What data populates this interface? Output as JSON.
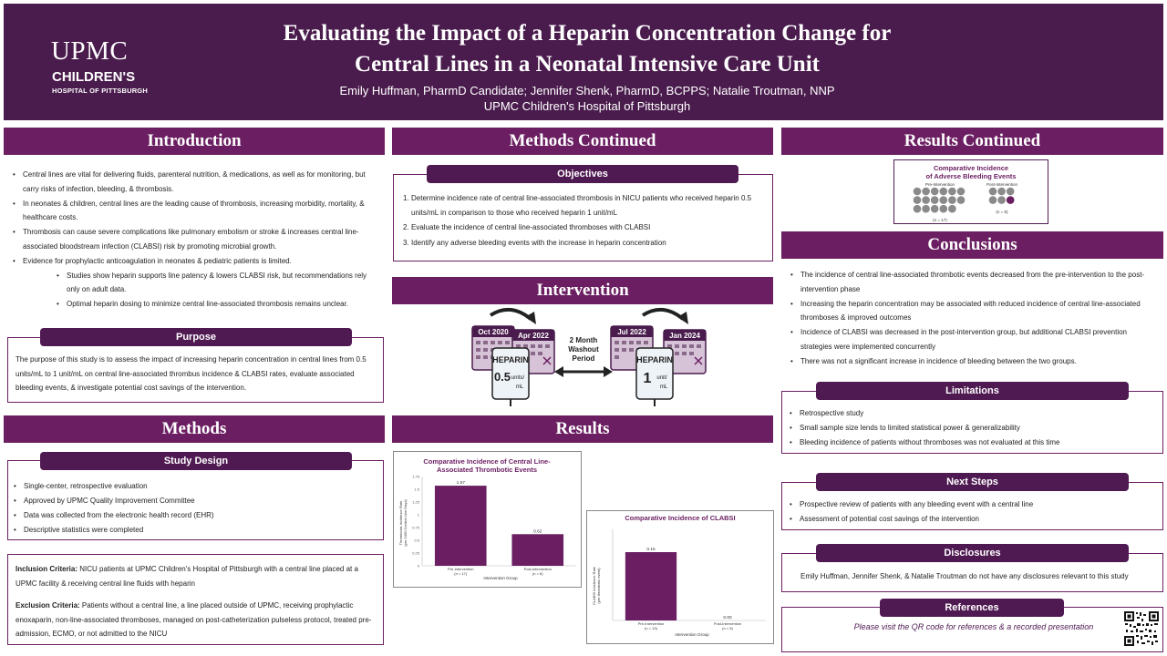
{
  "header": {
    "logo_upmc": "UPMC",
    "logo_childrens": "CHILDREN'S",
    "logo_hospital": "HOSPITAL OF PITTSBURGH",
    "title_line1": "Evaluating the Impact of a Heparin Concentration Change for",
    "title_line2": "Central Lines in a Neonatal Intensive Care Unit",
    "authors": "Emily Huffman, PharmD Candidate; Jennifer Shenk, PharmD, BCPPS; Natalie Troutman, NNP",
    "affiliation": "UPMC Children's Hospital of Pittsburgh"
  },
  "introduction": {
    "title": "Introduction",
    "bullets": [
      "Central lines are vital for delivering fluids, parenteral nutrition, & medications, as well as for monitoring, but carry risks of infection, bleeding, & thrombosis.",
      "In neonates & children, central lines are the leading cause of thrombosis, increasing morbidity, mortality, & healthcare costs.",
      "Thrombosis can cause severe complications like pulmonary embolism or stroke & increases central line-associated bloodstream infection (CLABSI) risk by promoting microbial growth.",
      "Evidence for prophylactic anticoagulation in neonates & pediatric patients is limited."
    ],
    "sub_bullets": [
      "Studies show heparin supports line patency & lowers CLABSI risk, but recommendations rely only on adult data.",
      "Optimal heparin dosing to minimize central line-associated thrombosis remains unclear."
    ]
  },
  "purpose": {
    "title": "Purpose",
    "text": "The purpose of this study is to assess the impact of increasing heparin concentration in central lines from 0.5 units/mL  to 1 unit/mL on central line-associated thrombus incidence & CLABSI rates, evaluate associated bleeding events, & investigate potential cost savings of the intervention."
  },
  "methods": {
    "title": "Methods",
    "study_design_title": "Study Design",
    "bullets": [
      "Single-center, retrospective evaluation",
      "Approved by UPMC Quality Improvement Committee",
      "Data was collected from the electronic health record (EHR)",
      "Descriptive statistics were completed"
    ],
    "inclusion_label": "Inclusion Criteria:",
    "inclusion_text": " NICU patients at UPMC Children's Hospital of Pittsburgh with a central line placed at a UPMC facility & receiving central line fluids with heparin",
    "exclusion_label": "Exclusion Criteria:",
    "exclusion_text": " Patients without a central line, a line placed outside of UPMC, receiving prophylactic enoxaparin, non-line-associated thromboses, managed on post-catheterization pulseless protocol, treated pre-admission, ECMO, or not admitted to the NICU"
  },
  "methods_continued": {
    "title": "Methods Continued",
    "objectives_title": "Objectives",
    "objectives": [
      "Determine incidence rate of central line-associated thrombosis in NICU patients who received heparin 0.5 units/mL in comparison to those who received heparin 1 unit/mL",
      "Evaluate the incidence of central line-associated thromboses with CLABSI",
      "Identify any adverse bleeding events with the increase in heparin concentration"
    ]
  },
  "intervention": {
    "title": "Intervention",
    "cal_pre_start": "Oct 2020",
    "cal_pre_end": "Apr 2022",
    "cal_post_start": "Jul 2022",
    "cal_post_end": "Jan 2024",
    "washout": "2 Month Washout Period",
    "bag_label": "HEPARIN",
    "bag_pre_dose": "0.5",
    "bag_post_dose": "1",
    "bag_unit_pre": "units/",
    "bag_unit_post": "unit/",
    "bag_ml": "mL"
  },
  "results": {
    "title": "Results",
    "chart1_title_l1": "Comparative Incidence of Central Line-",
    "chart1_title_l2": "Associated Thrombotic Events",
    "chart1_ylabel_l1": "Thrombosis Incidence Rate",
    "chart1_ylabel_l2": "(per 1000 Central Line Days)",
    "chart1_xlabel": "Intervention Group",
    "chart2_title": "Comparative Incidence of CLABSI",
    "chart2_ylabel_l1": "CLABSI Incidence Rate",
    "chart2_ylabel_l2": "(per thrombotic event)",
    "chart2_xlabel": "Intervention Group"
  },
  "results_continued": {
    "title": "Results Continued",
    "bleed_title_l1": "Comparative Incidence",
    "bleed_title_l2": "of Adverse Bleeding Events",
    "pre_label": "Pre-Intervention",
    "post_label": "Post-Intervention",
    "pre_n": "(n = 17)",
    "post_n": "(n = 6)",
    "pre_total": 17,
    "pre_events": 0,
    "post_total": 6,
    "post_events": 1
  },
  "conclusions": {
    "title": "Conclusions",
    "bullets": [
      "The incidence of central line-associated thrombotic events decreased from the pre-intervention to the post-intervention phase",
      "Increasing the heparin concentration may be associated with reduced incidence of central line-associated thromboses & improved outcomes",
      "Incidence of CLABSI was decreased in the post-intervention group, but additional CLABSI prevention strategies were implemented concurrently",
      "There was not a significant increase in incidence of bleeding between the two groups."
    ]
  },
  "limitations": {
    "title": "Limitations",
    "bullets": [
      "Retrospective study",
      "Small sample size lends to limited statistical power & generalizability",
      "Bleeding incidence of patients without thromboses was not evaluated at this time"
    ]
  },
  "next_steps": {
    "title": "Next Steps",
    "bullets": [
      "Prospective review of patients with any bleeding event with a central line",
      "Assessment of potential cost savings of the intervention"
    ]
  },
  "disclosures": {
    "title": "Disclosures",
    "text": "Emily Huffman, Jennifer Shenk, & Natalie Troutman do not have any disclosures relevant to this study"
  },
  "references": {
    "title": "References",
    "text": "Please visit the QR code for references & a recorded presentation"
  },
  "colors": {
    "header": "#4a1c4d",
    "section": "#6b1f62",
    "bar": "#6b1f62",
    "dot_gray": "#8a8a8a",
    "dot_purple": "#6b1f62"
  },
  "chart_data": [
    {
      "type": "bar",
      "title": "Comparative Incidence of Central Line-Associated Thrombotic Events",
      "xlabel": "Intervention Group",
      "ylabel": "Thrombosis Incidence Rate (per 1000 Central Line Days)",
      "categories": [
        "Pre-Intervention",
        "Post-Intervention"
      ],
      "category_n": [
        "(n = 17)",
        "(n = 6)"
      ],
      "values": [
        1.57,
        0.62
      ],
      "value_labels": [
        "1.57",
        "0.62"
      ],
      "ylim": [
        0,
        1.75
      ],
      "yticks": [
        0,
        0.25,
        0.5,
        0.75,
        1,
        1.25,
        1.5,
        1.75
      ],
      "ytick_labels": [
        "0",
        "0.25",
        "0.5",
        "0.75",
        "1",
        "1.25",
        "1.5",
        "1.75"
      ],
      "grid": false
    },
    {
      "type": "bar",
      "title": "Comparative Incidence of CLABSI",
      "xlabel": "Intervention Group",
      "ylabel": "CLABSI Incidence Rate (per thrombotic event)",
      "categories": [
        "Pre-Intervention",
        "Post-Intervention"
      ],
      "category_n": [
        "(n = 13)",
        "(n = 5)"
      ],
      "values": [
        0.15,
        0.0
      ],
      "value_labels": [
        "0.15",
        "0.00"
      ],
      "ylim": [
        0,
        0.2
      ],
      "grid": false
    }
  ]
}
